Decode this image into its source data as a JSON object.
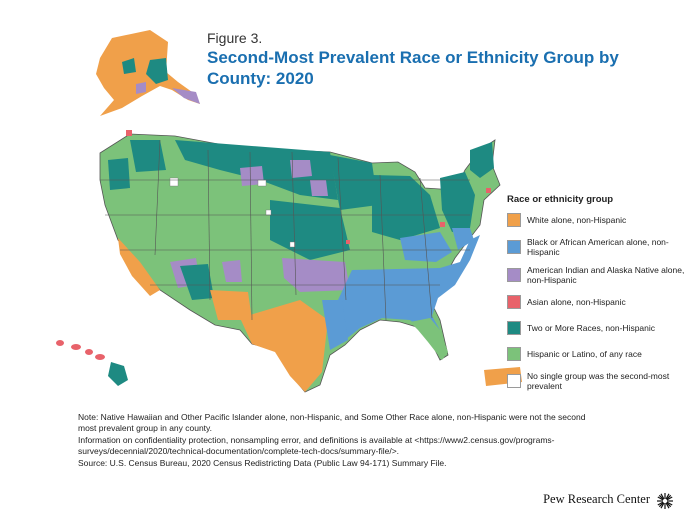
{
  "figure": {
    "label": "Figure 3.",
    "title": "Second-Most Prevalent Race or Ethnicity Group by County: 2020"
  },
  "legend": {
    "title": "Race or ethnicity group",
    "items": [
      {
        "label": "White alone, non-Hispanic",
        "color": "#f0a04a"
      },
      {
        "label": "Black or African American alone, non-Hispanic",
        "color": "#5b9bd5"
      },
      {
        "label": "American Indian and Alaska Native alone, non-Hispanic",
        "color": "#a58cc6"
      },
      {
        "label": "Asian alone, non-Hispanic",
        "color": "#e8626a"
      },
      {
        "label": "Two or More Races, non-Hispanic",
        "color": "#1e8a82"
      },
      {
        "label": "Hispanic or Latino, of any race",
        "color": "#7cc27a"
      },
      {
        "label": "No single group was the second-most prevalent",
        "color": "#ffffff"
      }
    ]
  },
  "notes": {
    "note": "Note: Native Hawaiian and Other Pacific Islander alone, non-Hispanic, and Some Other Race alone, non-Hispanic were not the second most prevalent group in any county.",
    "info": "Information on confidentiality protection, nonsampling error, and definitions is available at <https://www2.census.gov/programs-surveys/decennial/2020/technical-documentation/complete-tech-docs/summary-file/>.",
    "source": "Source: U.S. Census Bureau, 2020 Census Redistricting Data (Public Law 94-171) Summary File."
  },
  "brand": {
    "name": "Pew Research Center"
  }
}
